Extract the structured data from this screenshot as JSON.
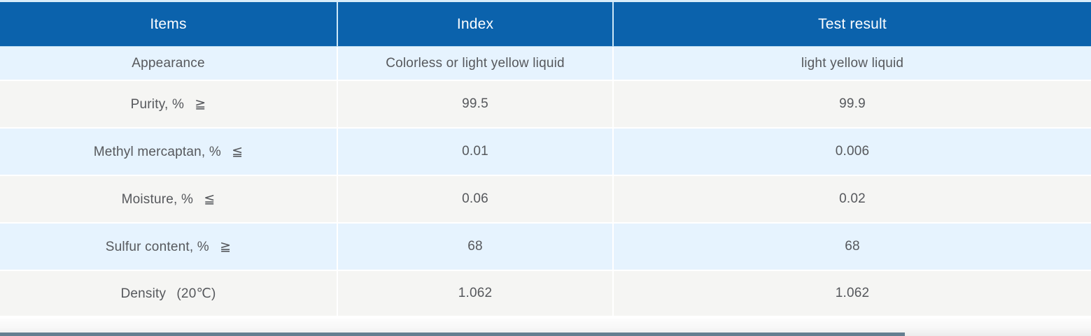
{
  "colors": {
    "header_bg": "#0b62ac",
    "header_text": "#fdfeff",
    "row_alt_blue": "#e6f3fe",
    "row_alt_gray": "#f5f5f3",
    "body_text": "#56585c",
    "top_strip": "#d9edfa",
    "bottom_bar": "#647e90"
  },
  "table": {
    "columns": [
      "Items",
      "Index",
      "Test result"
    ],
    "rows": [
      {
        "cells": [
          "Appearance",
          "Colorless or light yellow liquid",
          "light yellow liquid"
        ]
      },
      {
        "cells": [
          "Purity, %  ≧",
          "99.5",
          "99.9"
        ]
      },
      {
        "cells": [
          "Methyl mercaptan, %  ≦",
          "0.01",
          "0.006"
        ]
      },
      {
        "cells": [
          "Moisture, %  ≦",
          "0.06",
          "0.02"
        ]
      },
      {
        "cells": [
          "Sulfur content, %  ≧",
          "68",
          "68"
        ]
      },
      {
        "cells": [
          "Density  (20℃)",
          "1.062",
          "1.062"
        ]
      }
    ]
  }
}
